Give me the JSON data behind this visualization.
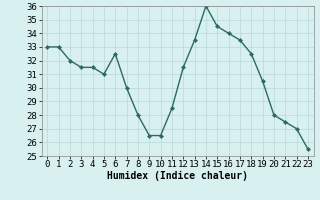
{
  "x": [
    0,
    1,
    2,
    3,
    4,
    5,
    6,
    7,
    8,
    9,
    10,
    11,
    12,
    13,
    14,
    15,
    16,
    17,
    18,
    19,
    20,
    21,
    22,
    23
  ],
  "y": [
    33,
    33,
    32,
    31.5,
    31.5,
    31,
    32.5,
    30,
    28,
    26.5,
    26.5,
    28.5,
    31.5,
    33.5,
    36,
    34.5,
    34,
    33.5,
    32.5,
    30.5,
    28,
    27.5,
    27,
    25.5
  ],
  "line_color": "#2d6b5e",
  "marker": "D",
  "marker_size": 2,
  "bg_color": "#d9f0f0",
  "grid_color": "#b8d8d8",
  "xlabel": "Humidex (Indice chaleur)",
  "xlim": [
    -0.5,
    23.5
  ],
  "ylim": [
    25,
    36
  ],
  "yticks": [
    25,
    26,
    27,
    28,
    29,
    30,
    31,
    32,
    33,
    34,
    35,
    36
  ],
  "xticks": [
    0,
    1,
    2,
    3,
    4,
    5,
    6,
    7,
    8,
    9,
    10,
    11,
    12,
    13,
    14,
    15,
    16,
    17,
    18,
    19,
    20,
    21,
    22,
    23
  ],
  "xlabel_fontsize": 7,
  "tick_fontsize": 6.5,
  "linewidth": 1.0
}
